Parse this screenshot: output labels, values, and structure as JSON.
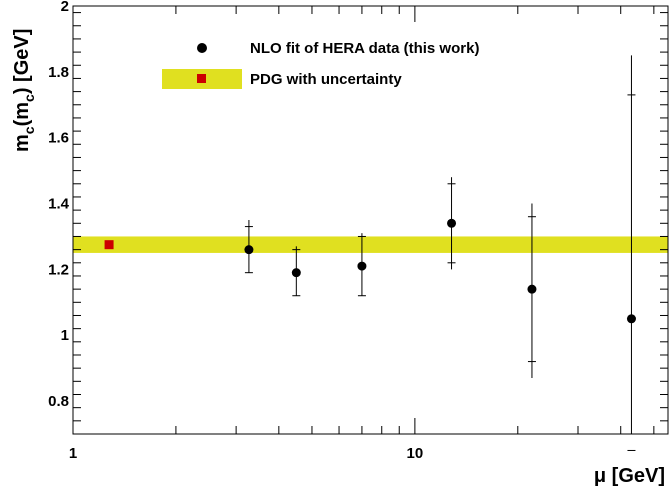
{
  "chart_data": {
    "type": "scatter",
    "x_scale": "log",
    "xlabel": "μ [GeV]",
    "ylabel_main": "m",
    "ylabel_sub1": "c",
    "ylabel_mid": "(m",
    "ylabel_sub2": "c",
    "ylabel_end": ") [GeV]",
    "xlim": [
      1,
      55
    ],
    "ylim": [
      0.7,
      2.0
    ],
    "x_ticks": [
      1,
      10
    ],
    "x_tick_labels": [
      "1",
      "10"
    ],
    "y_ticks": [
      0.8,
      1.0,
      1.2,
      1.4,
      1.6,
      1.8,
      2.0
    ],
    "y_tick_labels": [
      "0.8",
      "1",
      "1.2",
      "1.4",
      "1.6",
      "1.8",
      "2"
    ],
    "series": [
      {
        "name": "NLO fit of HERA data (this work)",
        "color": "#000000",
        "marker": "circle",
        "points": [
          {
            "x": 3.27,
            "y": 1.26,
            "err_tot_lo": 0.07,
            "err_tot_hi": 0.09,
            "err_inner_lo": 0.07,
            "err_inner_hi": 0.07
          },
          {
            "x": 4.5,
            "y": 1.19,
            "err_tot_lo": 0.07,
            "err_tot_hi": 0.08,
            "err_inner_lo": 0.07,
            "err_inner_hi": 0.07
          },
          {
            "x": 7.0,
            "y": 1.21,
            "err_tot_lo": 0.09,
            "err_tot_hi": 0.1,
            "err_inner_lo": 0.09,
            "err_inner_hi": 0.09
          },
          {
            "x": 12.8,
            "y": 1.34,
            "err_tot_lo": 0.14,
            "err_tot_hi": 0.14,
            "err_inner_lo": 0.12,
            "err_inner_hi": 0.12
          },
          {
            "x": 22.0,
            "y": 1.14,
            "err_tot_lo": 0.27,
            "err_tot_hi": 0.26,
            "err_inner_lo": 0.22,
            "err_inner_hi": 0.22
          },
          {
            "x": 43.0,
            "y": 1.05,
            "err_tot_lo": 0.4,
            "err_tot_hi": 0.8,
            "err_inner_lo": 0.4,
            "err_inner_hi": 0.68
          }
        ]
      },
      {
        "name": "PDG with  uncertainty",
        "color": "#cc0000",
        "marker": "square",
        "points": [
          {
            "x": 1.275,
            "y": 1.275
          }
        ],
        "band": {
          "y_low": 1.25,
          "y_high": 1.3,
          "color": "#e0e020"
        }
      }
    ],
    "legend_position": "top-center"
  }
}
